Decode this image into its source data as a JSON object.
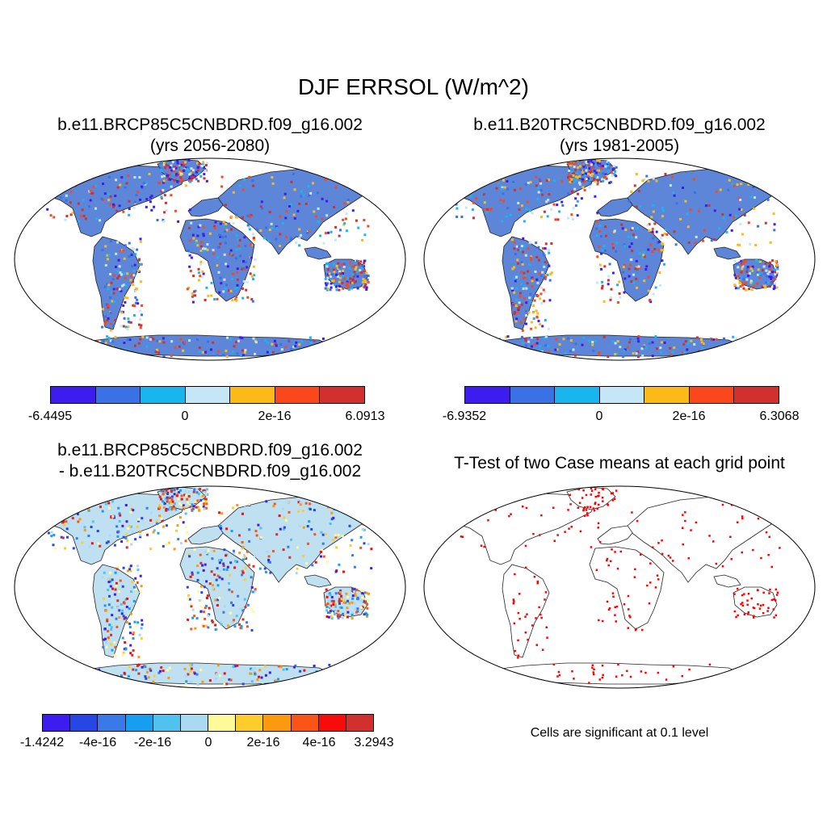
{
  "main_title": "DJF ERRSOL (W/m^2)",
  "panels": {
    "top_left": {
      "title_line1": "b.e11.BRCP85C5CNBDRD.f09_g16.002",
      "title_line2": "(yrs 2056-2080)",
      "colorbar": {
        "colors": [
          "#3d1cf0",
          "#3a71e4",
          "#19b5ef",
          "#c5e6f6",
          "#fbba17",
          "#fa471b",
          "#d2302e"
        ],
        "tick_labels": [
          "-6.4495",
          "0",
          "2e-16",
          "6.0913"
        ]
      }
    },
    "top_right": {
      "title_line1": "b.e11.B20TRC5CNBDRD.f09_g16.002",
      "title_line2": "(yrs 1981-2005)",
      "colorbar": {
        "colors": [
          "#3d1cf0",
          "#3a71e4",
          "#19b5ef",
          "#c5e6f6",
          "#fbba17",
          "#fa471b",
          "#d2302e"
        ],
        "tick_labels": [
          "-6.9352",
          "0",
          "2e-16",
          "6.3068"
        ]
      }
    },
    "bottom_left": {
      "title_line1": "b.e11.BRCP85C5CNBDRD.f09_g16.002",
      "title_line2": "- b.e11.B20TRC5CNBDRD.f09_g16.002",
      "colorbar": {
        "colors": [
          "#3d1cf0",
          "#2647e4",
          "#3a7ae8",
          "#169ff0",
          "#4fc2f0",
          "#a9daf1",
          "#fffa98",
          "#fdcd2b",
          "#fb9a0d",
          "#fa5416",
          "#f70b0b",
          "#d2302e"
        ],
        "tick_labels": [
          "-1.4242",
          "-4e-16",
          "-2e-16",
          "0",
          "2e-16",
          "4e-16",
          "3.2943"
        ]
      }
    },
    "bottom_right": {
      "title": "T-Test of two Case means at each grid point",
      "note": "Cells are significant at 0.1 level"
    }
  }
}
